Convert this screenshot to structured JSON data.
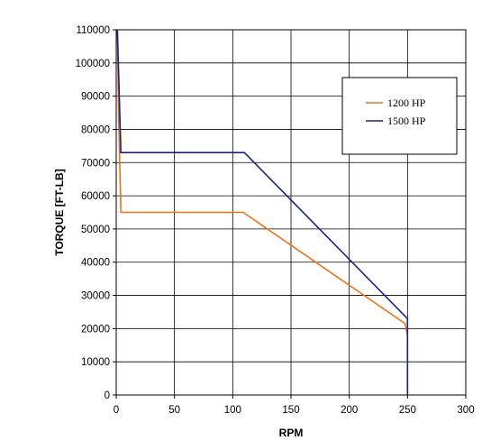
{
  "chart_data": {
    "type": "line",
    "xlabel": "RPM",
    "ylabel": "TORQUE [FT-LB]",
    "xlim": [
      0,
      300
    ],
    "ylim": [
      0,
      110000
    ],
    "xticks": [
      0,
      50,
      100,
      150,
      200,
      250,
      300
    ],
    "yticks": [
      0,
      10000,
      20000,
      30000,
      40000,
      50000,
      60000,
      70000,
      80000,
      90000,
      100000,
      110000
    ],
    "grid": true,
    "legend_position": "top-right",
    "series": [
      {
        "name": "1200 HP",
        "color": "#e8731c",
        "points": [
          [
            1,
            110000
          ],
          [
            2,
            85000
          ],
          [
            4,
            55000
          ],
          [
            109,
            55000
          ],
          [
            248,
            21500
          ],
          [
            250,
            18000
          ],
          [
            250,
            0
          ]
        ]
      },
      {
        "name": "1500 HP",
        "color": "#1a237e",
        "points": [
          [
            1,
            110000
          ],
          [
            4,
            73000
          ],
          [
            110,
            73000
          ],
          [
            250,
            23000
          ],
          [
            250,
            0
          ]
        ]
      }
    ]
  }
}
